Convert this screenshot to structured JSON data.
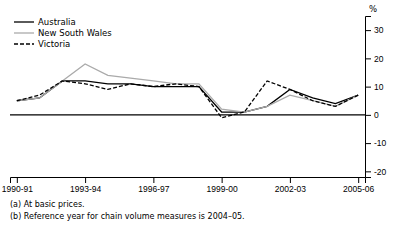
{
  "chart_data": {
    "type": "line",
    "categories": [
      "1990-91",
      null,
      null,
      "1993-94",
      null,
      null,
      "1996-97",
      null,
      null,
      "1999-00",
      null,
      null,
      "2002-03",
      null,
      null,
      "2005-06"
    ],
    "series": [
      {
        "name": "Australia",
        "color": "#000000",
        "line_style": "solid",
        "values": [
          5,
          6,
          12,
          12,
          11,
          11,
          10,
          10,
          10,
          1,
          1,
          3,
          9,
          6,
          4,
          7
        ]
      },
      {
        "name": "New South Wales",
        "color": "#aaaaaa",
        "line_style": "solid",
        "values": [
          5,
          6,
          12,
          18,
          14,
          13,
          12,
          11,
          11,
          2,
          1,
          3,
          7,
          5,
          3,
          7
        ]
      },
      {
        "name": "Victoria",
        "color": "#000000",
        "line_style": "dashed",
        "values": [
          5,
          7,
          12,
          11,
          9,
          11,
          10,
          11,
          10,
          -1,
          1,
          12,
          9,
          5,
          3,
          7
        ]
      }
    ],
    "ylabel": "%",
    "ylim": [
      -22,
      35
    ],
    "yticks": [
      -20,
      -10,
      0,
      10,
      20,
      30
    ],
    "legend": "top-left",
    "annotations": [
      "(a) At basic prices.",
      "(b) Reference year for chain volume measures is 2004–05."
    ]
  }
}
